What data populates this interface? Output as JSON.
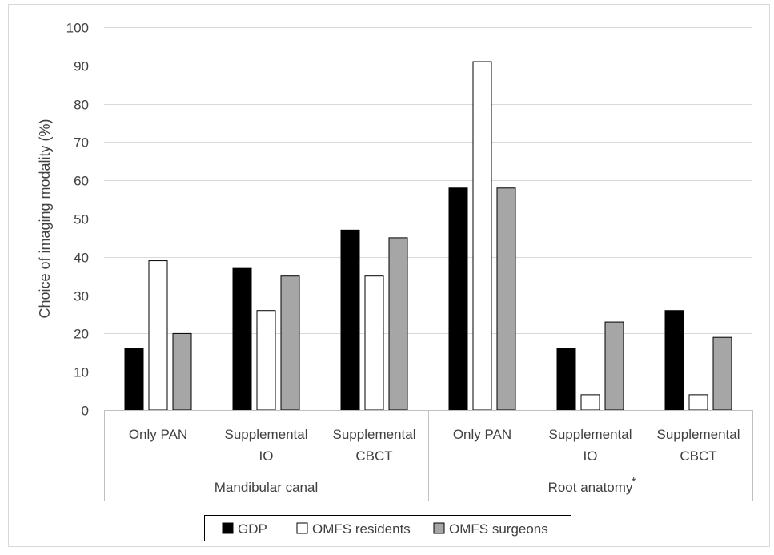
{
  "chart_data": {
    "type": "bar",
    "ylabel": "Choice of imaging modality (%)",
    "ylim": [
      0,
      100
    ],
    "yticks": [
      0,
      10,
      20,
      30,
      40,
      50,
      60,
      70,
      80,
      90,
      100
    ],
    "grid": true,
    "legend_position": "bottom",
    "groups": [
      {
        "label": "Mandibular canal",
        "marker": ""
      },
      {
        "label": "Root anatomy",
        "marker": "*"
      }
    ],
    "categories": [
      {
        "lines": [
          "Only PAN"
        ],
        "group": 0
      },
      {
        "lines": [
          "Supplemental",
          "IO"
        ],
        "group": 0
      },
      {
        "lines": [
          "Supplemental",
          "CBCT"
        ],
        "group": 0
      },
      {
        "lines": [
          "Only PAN"
        ],
        "group": 1
      },
      {
        "lines": [
          "Supplemental",
          "IO"
        ],
        "group": 1
      },
      {
        "lines": [
          "Supplemental",
          "CBCT"
        ],
        "group": 1
      }
    ],
    "series": [
      {
        "name": "GDP",
        "color": "#000000",
        "values": [
          16,
          37,
          47,
          58,
          16,
          26
        ]
      },
      {
        "name": "OMFS residents",
        "color": "#ffffff",
        "values": [
          39,
          26,
          35,
          91,
          4,
          4
        ]
      },
      {
        "name": "OMFS surgeons",
        "color": "#a6a6a6",
        "values": [
          20,
          35,
          45,
          58,
          23,
          19
        ]
      }
    ]
  }
}
